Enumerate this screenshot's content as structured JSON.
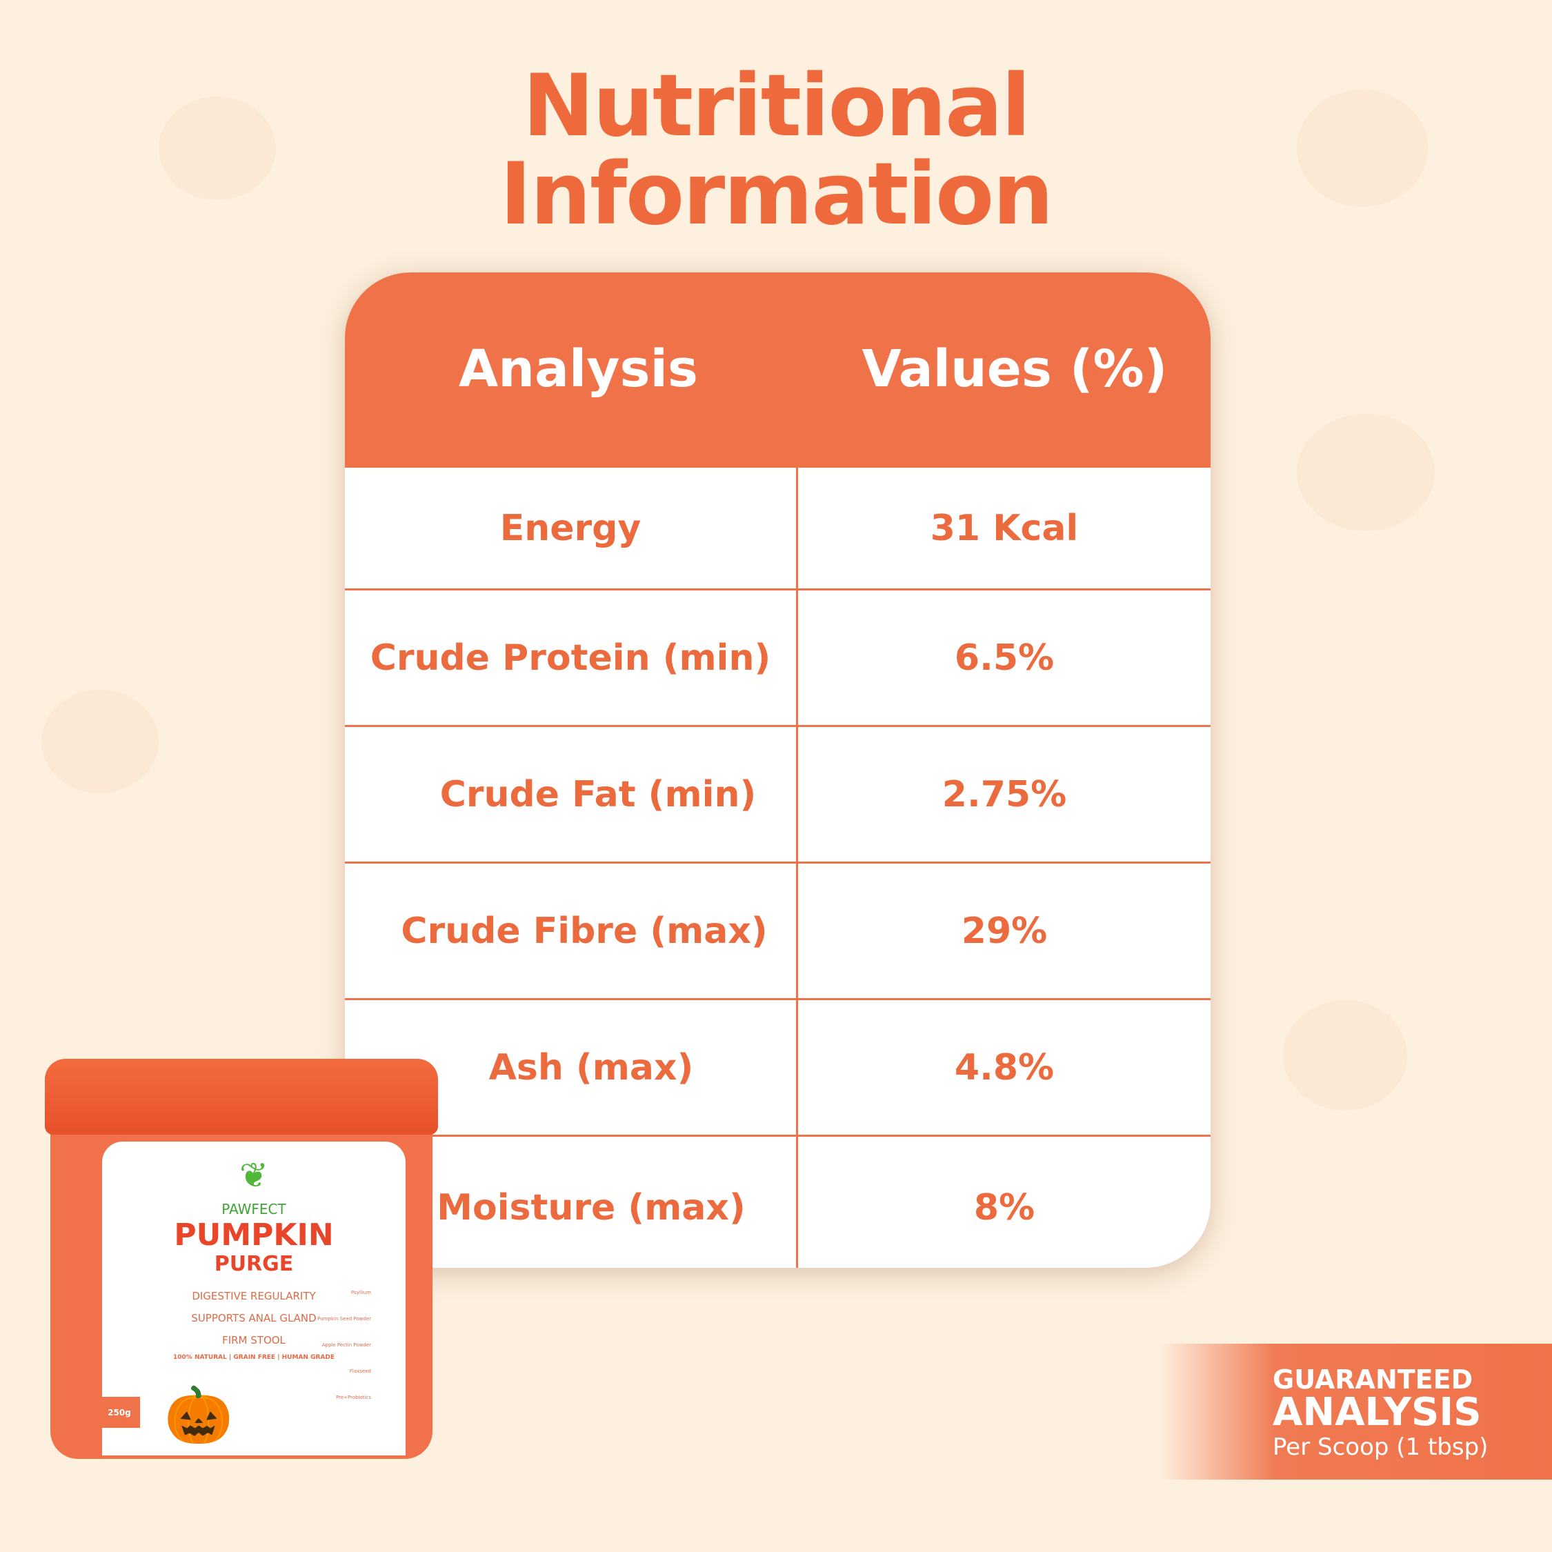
{
  "title": {
    "line1": "Nutritional",
    "line2": "Information"
  },
  "table": {
    "headers": [
      "Analysis",
      "Values (%)"
    ],
    "rows": [
      {
        "analysis": "Energy",
        "value": "31 Kcal"
      },
      {
        "analysis": "Crude Protein (min)",
        "value": "6.5%"
      },
      {
        "analysis": "Crude Fat (min)",
        "value": "2.75%"
      },
      {
        "analysis": "Crude Fibre (max)",
        "value": "29%"
      },
      {
        "analysis": "Ash (max)",
        "value": "4.8%"
      },
      {
        "analysis": "Moisture (max)",
        "value": "8%"
      }
    ]
  },
  "product": {
    "brand": "PAWFECT",
    "name1": "PUMPKIN",
    "name2": "PURGE",
    "benefits": [
      "DIGESTIVE REGULARITY",
      "SUPPORTS ANAL GLAND",
      "FIRM STOOL"
    ],
    "features": [
      "100% NATURAL",
      "GRAIN FREE",
      "HUMAN GRADE"
    ],
    "ingredients": [
      "Psyllium",
      "Pumpkin Seed Powder",
      "Apple Pectin Powder",
      "Flaxseed",
      "Pre+Probiotics"
    ],
    "weight": "250g"
  },
  "badge": {
    "line1": "GUARANTEED",
    "line2": "ANALYSIS",
    "line3": "Per Scoop (1 tbsp)"
  },
  "colors": {
    "accent": "#f07249",
    "text_orange": "#ec6b3e",
    "background": "#fdf0df"
  }
}
